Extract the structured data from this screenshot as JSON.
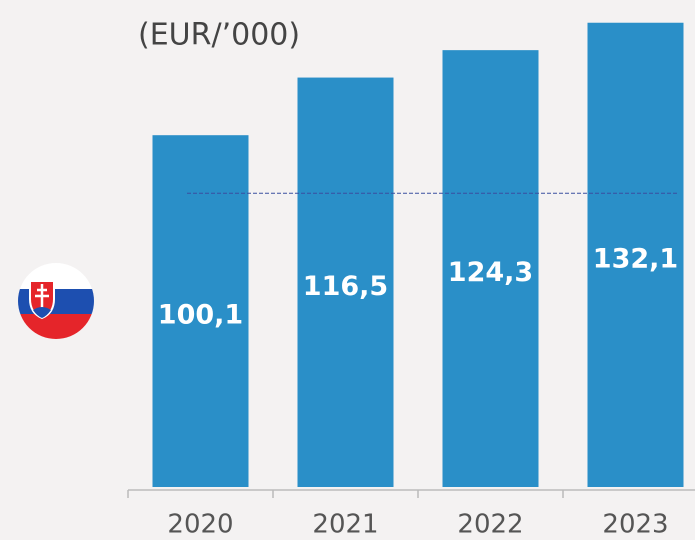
{
  "chart_data": {
    "type": "bar",
    "title": "(EUR/’000)",
    "categories": [
      "2020",
      "2021",
      "2022",
      "2023"
    ],
    "values": [
      100.1,
      116.5,
      124.3,
      132.1
    ],
    "value_labels": [
      "100,1",
      "116,5",
      "124,3",
      "132,1"
    ],
    "color": "#2a8fc8",
    "ylim": [
      0,
      138
    ],
    "reference_line": 83.6
  }
}
